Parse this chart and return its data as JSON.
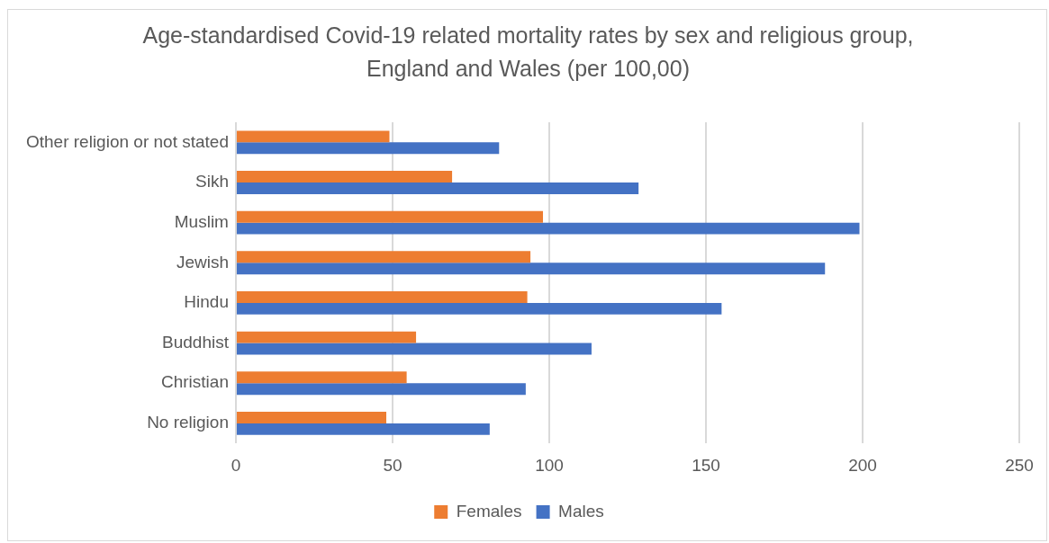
{
  "chart_data": {
    "type": "bar",
    "orientation": "horizontal",
    "title": "Age-standardised Covid-19 related mortality rates by sex and religious group, England and Wales (per 100,00)",
    "categories": [
      "Other religion or not stated",
      "Sikh",
      "Muslim",
      "Jewish",
      "Hindu",
      "Buddhist",
      "Christian",
      "No religion"
    ],
    "series": [
      {
        "name": "Females",
        "color": "#ed7d31",
        "values": [
          49,
          69,
          98,
          94,
          93,
          57.5,
          54.5,
          48
        ]
      },
      {
        "name": "Males",
        "color": "#4472c4",
        "values": [
          84,
          128.5,
          199,
          188,
          155,
          113.5,
          92.5,
          81
        ]
      }
    ],
    "xlim": [
      0,
      250
    ],
    "xticks": [
      0,
      50,
      100,
      150,
      200,
      250
    ],
    "grid": "x",
    "legend": "bottom"
  }
}
